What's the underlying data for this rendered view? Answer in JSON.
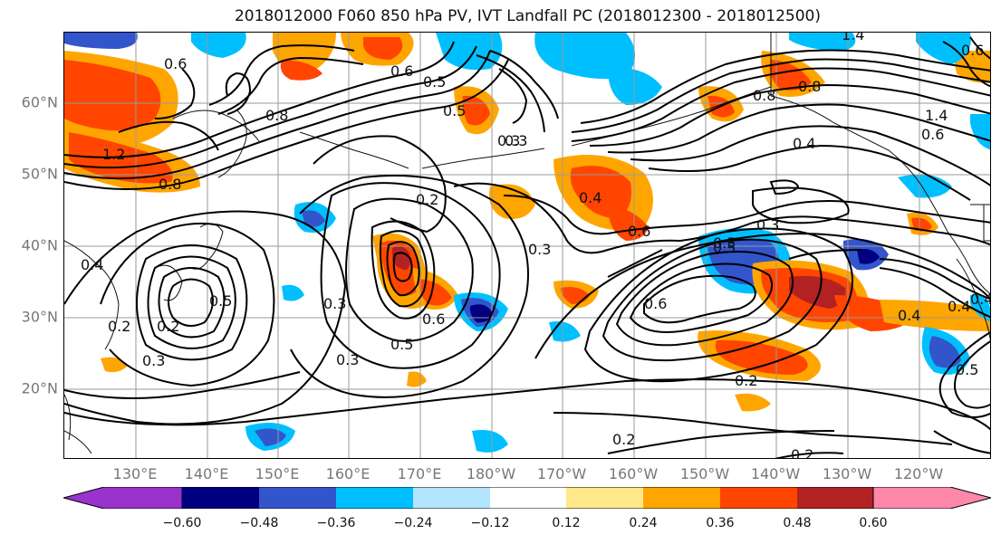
{
  "title": "2018012000 F060 850 hPa PV, IVT Landfall PC (2018012300 - 2018012500)",
  "lat_labels": [
    "60°N",
    "50°N",
    "40°N",
    "30°N",
    "20°N"
  ],
  "lon_labels": [
    "130°E",
    "140°E",
    "150°E",
    "160°E",
    "170°E",
    "180°W",
    "170°W",
    "160°W",
    "150°W",
    "140°W",
    "130°W",
    "120°W"
  ],
  "colorbar": {
    "ticks": [
      "−0.60",
      "−0.48",
      "−0.36",
      "−0.24",
      "−0.12",
      "0.12",
      "0.24",
      "0.36",
      "0.48",
      "0.60"
    ],
    "colors": [
      "#9933cc",
      "#000080",
      "#3355cc",
      "#00bfff",
      "#b3e5ff",
      "#ffffff",
      "#ffe88a",
      "#ffa500",
      "#ff4500",
      "#b22222",
      "#ff88aa"
    ]
  },
  "contour_labels": [
    "0.8",
    "0.5",
    "0.3",
    "0.6",
    "1.4",
    "1.2",
    "0.8",
    "0.4",
    "0.2",
    "0.4",
    "0.6",
    "0.5",
    "0.3",
    "0.3",
    "0.6",
    "0.5",
    "0.3",
    "0.6",
    "0.5",
    "0.3",
    "0.2",
    "0.4",
    "0.2",
    "0.5",
    "0.2",
    "0.3",
    "0.2",
    "0.4",
    "0.5",
    "0.6",
    "0.6",
    "0.3",
    "0.4",
    "0.8",
    "1.4",
    "0.6",
    "0.2",
    "0.4",
    "0.5",
    "0.8"
  ]
}
